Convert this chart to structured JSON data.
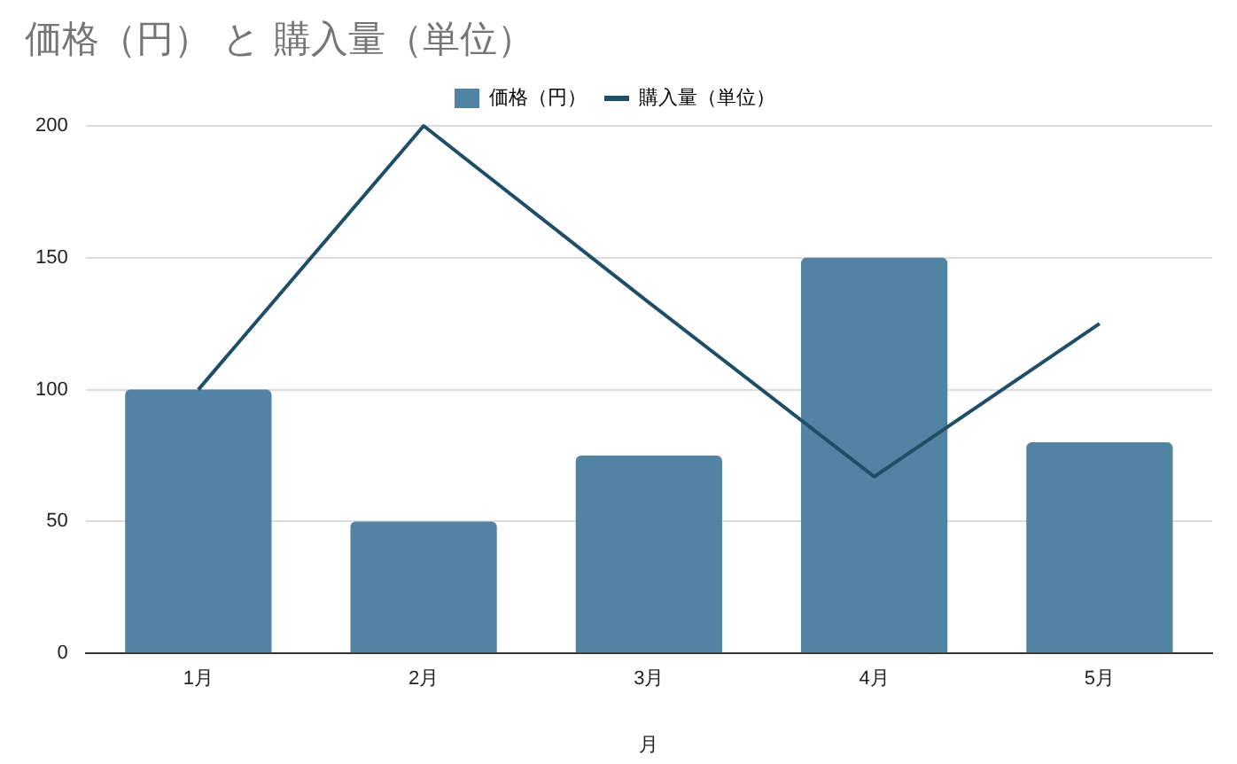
{
  "chart_data": {
    "type": "bar",
    "title": "価格（円） と 購入量（単位）",
    "xlabel": "月",
    "categories": [
      "1月",
      "2月",
      "3月",
      "4月",
      "5月"
    ],
    "series": [
      {
        "name": "価格（円）",
        "color": "#5283a3",
        "values": [
          100,
          50,
          75,
          150,
          80
        ]
      },
      {
        "name": "購入量（単位）",
        "type": "line",
        "color": "#1f4e66",
        "values": [
          100,
          200,
          133,
          67,
          125
        ]
      }
    ],
    "ylim": [
      0,
      200
    ],
    "yticks": [
      0,
      50,
      100,
      150,
      200
    ],
    "grid": "y",
    "legend": "top",
    "marker": "none"
  }
}
